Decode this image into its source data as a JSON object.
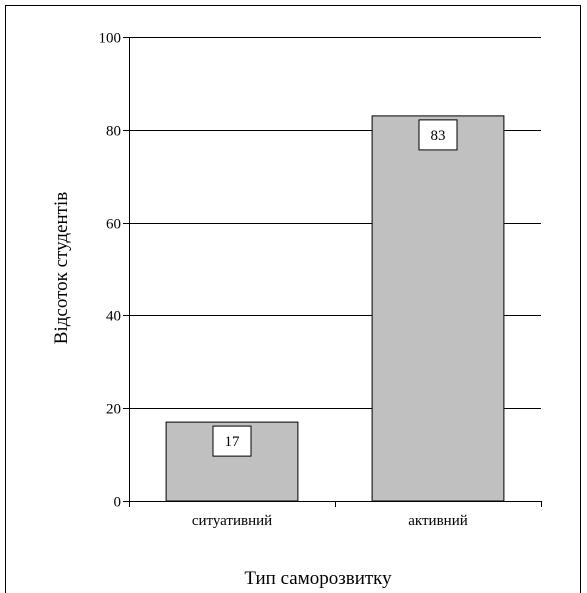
{
  "chart_data": {
    "type": "bar",
    "categories": [
      "ситуативний",
      "активний"
    ],
    "values": [
      17,
      83
    ],
    "data_labels": [
      "17",
      "83"
    ],
    "title": "",
    "xlabel": "Тип саморозвитку",
    "ylabel": "Відсоток студентів",
    "ylim": [
      0,
      100
    ],
    "y_ticks": [
      "0",
      "20",
      "40",
      "60",
      "80",
      "100"
    ],
    "grid": true,
    "legend": "none",
    "colors": {
      "bar_fill": "#c0c0c0",
      "bar_stroke": "#000000",
      "grid": "#000000",
      "axis": "#000000",
      "label_box": "#ffffff"
    }
  }
}
